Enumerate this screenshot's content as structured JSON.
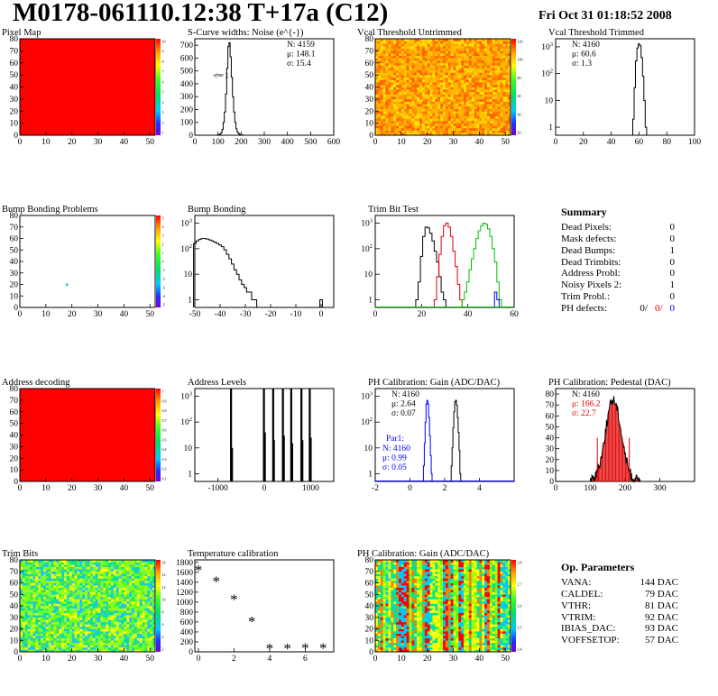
{
  "header": {
    "title": "M0178-061110.12:38 T+17a (C12)",
    "date": "Fri Oct 31 01:18:52 2008"
  },
  "chart_data": [
    {
      "id": "pixel-map",
      "type": "heatmap",
      "title": "Pixel Map",
      "xlim": [
        0,
        52
      ],
      "ylim": [
        0,
        80
      ],
      "xticks": [
        0,
        10,
        20,
        30,
        40,
        50
      ],
      "yticks": [
        0,
        10,
        20,
        30,
        40,
        50,
        60,
        70,
        80
      ],
      "colorbar_ticks": [
        "10",
        "9",
        "8",
        "7",
        "6",
        "5",
        "4",
        "3",
        "2",
        "1"
      ],
      "fill": "uniform red (all pixels = 10)"
    },
    {
      "id": "scurve-noise",
      "type": "bar",
      "title": "S-Curve widths: Noise (e^{-})",
      "xlim": [
        0,
        600
      ],
      "ylim": [
        0,
        750
      ],
      "xticks": [
        0,
        100,
        200,
        300,
        400,
        500,
        600
      ],
      "yticks": [
        0,
        100,
        200,
        300,
        400,
        500,
        600,
        700
      ],
      "stats": [
        "N: 4159",
        "μ: 148.1",
        "σ: 15.4"
      ],
      "annotation": "<= 1",
      "x": [
        100,
        105,
        110,
        115,
        120,
        125,
        130,
        135,
        140,
        145,
        150,
        155,
        160,
        165,
        170,
        175,
        180,
        185,
        190,
        195,
        200,
        205,
        210
      ],
      "values": [
        2,
        4,
        8,
        20,
        45,
        100,
        180,
        320,
        520,
        690,
        720,
        610,
        450,
        300,
        180,
        100,
        50,
        25,
        12,
        6,
        3,
        2,
        1
      ]
    },
    {
      "id": "vcal-untrimmed",
      "type": "heatmap",
      "title": "Vcal Threshold Untrimmed",
      "xlim": [
        0,
        52
      ],
      "ylim": [
        0,
        80
      ],
      "xticks": [
        0,
        10,
        20,
        30,
        40,
        50
      ],
      "yticks": [
        0,
        10,
        20,
        30,
        40,
        50,
        60,
        70,
        80
      ],
      "colorbar_ticks": [
        "120",
        "100",
        "80",
        "60",
        "40",
        "20"
      ],
      "fill": "noisy orange-yellow (values ~50-110)"
    },
    {
      "id": "vcal-trimmed",
      "type": "bar",
      "title": "Vcal Threshold Trimmed",
      "log_y": true,
      "xlim": [
        0,
        100
      ],
      "ylim": [
        0.5,
        2000
      ],
      "xticks": [
        0,
        20,
        40,
        60,
        80,
        100
      ],
      "stats": [
        "N: 4160",
        "μ: 60.6",
        "σ:  1.3"
      ],
      "x": [
        56,
        57,
        58,
        59,
        60,
        61,
        62,
        63,
        64,
        65
      ],
      "values": [
        2,
        30,
        300,
        900,
        1300,
        1100,
        400,
        80,
        10,
        1
      ]
    },
    {
      "id": "bump-bonding-problems",
      "type": "heatmap",
      "title": "Bump Bonding Problems",
      "xlim": [
        0,
        52
      ],
      "ylim": [
        0,
        80
      ],
      "xticks": [
        0,
        10,
        20,
        30,
        40,
        50
      ],
      "yticks": [
        0,
        10,
        20,
        30,
        40,
        50,
        60,
        70,
        80
      ],
      "colorbar_ticks": [
        "5",
        "4",
        "3",
        "2",
        "1",
        "0",
        "-1",
        "-2",
        "-3",
        "-4",
        "-5"
      ],
      "points": [
        {
          "x": 18,
          "y": 20
        }
      ]
    },
    {
      "id": "bump-bonding",
      "type": "bar",
      "title": "Bump Bonding",
      "log_y": true,
      "xlim": [
        -50,
        5
      ],
      "ylim": [
        0.5,
        2000
      ],
      "xticks": [
        -50,
        -40,
        -30,
        -20,
        -10,
        0
      ],
      "x": [
        -50,
        -49,
        -48,
        -47,
        -46,
        -45,
        -44,
        -43,
        -42,
        -41,
        -40,
        -39,
        -38,
        -37,
        -36,
        -35,
        -34,
        -33,
        -32,
        -31,
        -30,
        -29,
        -28,
        -27,
        -26,
        -25
      ],
      "values": [
        160,
        200,
        230,
        250,
        250,
        240,
        220,
        200,
        180,
        160,
        140,
        120,
        90,
        60,
        40,
        25,
        15,
        10,
        6,
        4,
        3,
        2,
        2,
        1,
        1,
        0
      ],
      "extra_x": [
        0
      ],
      "extra_values": [
        1
      ]
    },
    {
      "id": "trim-bit-test",
      "type": "bar",
      "title": "Trim Bit Test",
      "log_y": true,
      "xlim": [
        0,
        60
      ],
      "ylim": [
        0.5,
        2000
      ],
      "xticks": [
        0,
        20,
        40,
        60
      ],
      "series": [
        {
          "color": "#000000",
          "x": [
            18,
            19,
            20,
            21,
            22,
            23,
            24,
            25,
            26,
            27,
            28,
            29,
            30
          ],
          "values": [
            1,
            5,
            50,
            300,
            700,
            650,
            400,
            200,
            80,
            30,
            8,
            2,
            1
          ]
        },
        {
          "color": "#e00000",
          "x": [
            26,
            27,
            28,
            29,
            30,
            31,
            32,
            33,
            34,
            35,
            36,
            37
          ],
          "values": [
            1,
            8,
            60,
            300,
            800,
            1000,
            700,
            300,
            80,
            20,
            4,
            1
          ]
        },
        {
          "color": "#00c000",
          "x": [
            38,
            39,
            40,
            41,
            42,
            43,
            44,
            45,
            46,
            47,
            48,
            49,
            50,
            51,
            52,
            53,
            54
          ],
          "values": [
            1,
            2,
            5,
            15,
            40,
            100,
            250,
            500,
            800,
            1000,
            900,
            600,
            300,
            100,
            30,
            5,
            1
          ]
        },
        {
          "color": "#0000ff",
          "x": [
            52,
            53
          ],
          "values": [
            2,
            1
          ]
        }
      ]
    },
    {
      "id": "address-decoding",
      "type": "heatmap",
      "title": "Address decoding",
      "xlim": [
        0,
        52
      ],
      "ylim": [
        0,
        80
      ],
      "xticks": [
        0,
        10,
        20,
        30,
        40,
        50
      ],
      "yticks": [
        0,
        10,
        20,
        30,
        40,
        50,
        60,
        70,
        80
      ],
      "colorbar_ticks": [
        "1",
        "0.9",
        "0.8",
        "0.7",
        "0.6",
        "0.5",
        "0.4",
        "0.3",
        "0.2",
        "0.1"
      ],
      "fill": "uniform red (all pixels = 1)"
    },
    {
      "id": "address-levels",
      "type": "bar",
      "title": "Address Levels",
      "log_y": true,
      "xlim": [
        -1500,
        1500
      ],
      "ylim": [
        0.5,
        2000
      ],
      "xticks": [
        -1000,
        0,
        1000
      ],
      "spikes": [
        {
          "x": -720,
          "v": 3000
        },
        {
          "x": -700,
          "v": 10
        },
        {
          "x": -10,
          "v": 3000
        },
        {
          "x": 10,
          "v": 40
        },
        {
          "x": 190,
          "v": 3000
        },
        {
          "x": 205,
          "v": 20
        },
        {
          "x": 400,
          "v": 3000
        },
        {
          "x": 420,
          "v": 30
        },
        {
          "x": 580,
          "v": 3000
        },
        {
          "x": 600,
          "v": 15
        },
        {
          "x": 800,
          "v": 3000
        },
        {
          "x": 820,
          "v": 20
        },
        {
          "x": 980,
          "v": 3000
        },
        {
          "x": 1000,
          "v": 25
        }
      ]
    },
    {
      "id": "ph-gain-1d",
      "type": "bar",
      "title": "PH Calibration: Gain (ADC/DAC)",
      "log_y": true,
      "xlim": [
        -2,
        6
      ],
      "ylim": [
        0.5,
        2000
      ],
      "xticks": [
        -2,
        0,
        2,
        4
      ],
      "stats": [
        "N: 4160",
        "μ: 2.64",
        "σ: 0.07"
      ],
      "par1_label": "Par1:",
      "par1_stats": [
        "N: 4160",
        "μ: 0.99",
        "σ: 0.05"
      ],
      "series": [
        {
          "color": "#000000",
          "x": [
            2.4,
            2.45,
            2.5,
            2.55,
            2.6,
            2.65,
            2.7,
            2.75,
            2.8,
            2.85,
            2.9
          ],
          "values": [
            2,
            10,
            60,
            250,
            600,
            700,
            450,
            150,
            40,
            8,
            1
          ]
        },
        {
          "color": "#0000ff",
          "x": [
            0.8,
            0.85,
            0.9,
            0.95,
            1.0,
            1.05,
            1.1,
            1.15,
            1.2,
            1.25
          ],
          "values": [
            2,
            15,
            100,
            500,
            700,
            500,
            150,
            30,
            5,
            1
          ]
        }
      ]
    },
    {
      "id": "ph-pedestal",
      "type": "bar",
      "title": "PH Calibration: Pedestal (DAC)",
      "xlim": [
        0,
        400
      ],
      "ylim": [
        0,
        85
      ],
      "xticks": [
        0,
        100,
        200,
        300
      ],
      "yticks": [
        0,
        10,
        20,
        30,
        40,
        50,
        60,
        70,
        80
      ],
      "stats": [
        "N: 4160",
        "μ: 166.2",
        "σ: 22.7"
      ],
      "stats_colors": [
        "#000000",
        "#e00000",
        "#e00000"
      ],
      "cut_lines": [
        {
          "x": 120,
          "v": 40
        },
        {
          "x": 212,
          "v": 40
        }
      ]
    },
    {
      "id": "trim-bits",
      "type": "heatmap",
      "title": "Trim Bits",
      "xlim": [
        0,
        52
      ],
      "ylim": [
        0,
        80
      ],
      "xticks": [
        0,
        10,
        20,
        30,
        40,
        50
      ],
      "yticks": [
        0,
        10,
        20,
        30,
        40,
        50,
        60,
        70,
        80
      ],
      "colorbar_ticks": [
        "16",
        "14",
        "12",
        "10",
        "8",
        "6",
        "4",
        "2"
      ],
      "fill": "noisy green-yellow (values ~6-12)"
    },
    {
      "id": "temperature-calibration",
      "type": "scatter",
      "title": "Temperature calibration",
      "xlim": [
        -0.2,
        7.6
      ],
      "ylim": [
        0,
        1850
      ],
      "xticks": [
        0,
        2,
        4,
        6
      ],
      "yticks": [
        0,
        200,
        400,
        600,
        800,
        1000,
        1200,
        1400,
        1600,
        1800
      ],
      "x": [
        0,
        1,
        2,
        3,
        4,
        5,
        6,
        7
      ],
      "y": [
        1650,
        1420,
        1060,
        620,
        70,
        70,
        85,
        80
      ]
    },
    {
      "id": "ph-gain-2d",
      "type": "heatmap",
      "title": "PH Calibration: Gain (ADC/DAC)",
      "xlim": [
        0,
        52
      ],
      "ylim": [
        0,
        80
      ],
      "xticks": [
        0,
        10,
        20,
        30,
        40,
        50
      ],
      "yticks": [
        0,
        10,
        20,
        30,
        40,
        50,
        60,
        70,
        80
      ],
      "colorbar_ticks": [
        "2.8",
        "2.7",
        "2.6",
        "2.5",
        "2.4"
      ],
      "fill": "column-striped green/yellow/red/cyan"
    }
  ],
  "summary": {
    "title": "Summary",
    "rows": [
      {
        "label": "Dead Pixels:",
        "value": "0"
      },
      {
        "label": "Mask defects:",
        "value": "0"
      },
      {
        "label": "Dead Bumps:",
        "value": "1"
      },
      {
        "label": "Dead Trimbits:",
        "value": "0"
      },
      {
        "label": "Address Probl:",
        "value": "0"
      },
      {
        "label": "Noisy Pixels 2:",
        "value": "1"
      },
      {
        "label": "Trim Probl.:",
        "value": "0"
      }
    ],
    "ph_label": "PH defects:",
    "ph_values": [
      {
        "text": "0/",
        "color": "#000000"
      },
      {
        "text": "0/",
        "color": "#e00000"
      },
      {
        "text": "0",
        "color": "#0000ff"
      }
    ]
  },
  "op_params": {
    "title": "Op. Parameters",
    "rows": [
      {
        "label": "VANA:",
        "value": "144 DAC"
      },
      {
        "label": "CALDEL:",
        "value": "79 DAC"
      },
      {
        "label": "VTHR:",
        "value": "81 DAC"
      },
      {
        "label": "VTRIM:",
        "value": "92 DAC"
      },
      {
        "label": "IBIAS_DAC:",
        "value": "93 DAC"
      },
      {
        "label": "VOFFSETOP:",
        "value": "57 DAC"
      }
    ]
  }
}
